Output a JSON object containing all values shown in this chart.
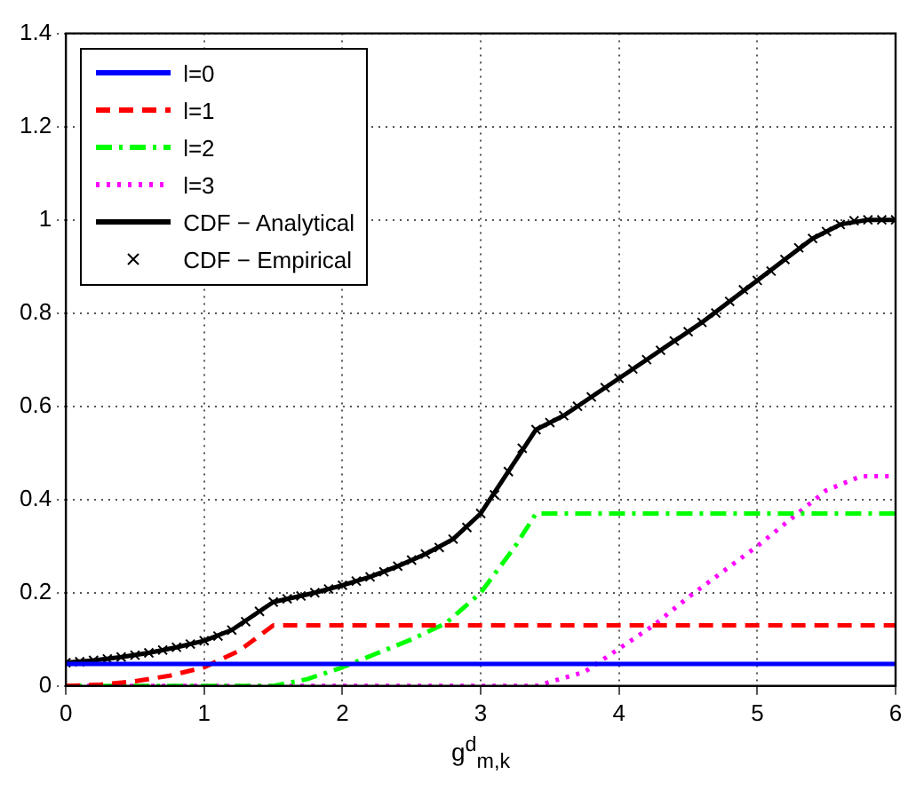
{
  "chart_data": {
    "type": "line",
    "xlabel": "g$^{d}$$_{m,k}$",
    "xlim": [
      0,
      6
    ],
    "xticks": [
      0,
      1,
      2,
      3,
      4,
      5,
      6
    ],
    "ylim": [
      0,
      1.4
    ],
    "yticks": [
      0,
      0.2,
      0.4,
      0.6,
      0.8,
      1,
      1.2,
      1.4
    ],
    "grid": true,
    "legend": "top left",
    "series": [
      {
        "name": "l=0",
        "color": "#0000ff",
        "line_style": "solid",
        "marker": "none",
        "x": [
          0,
          6
        ],
        "values": [
          0.047,
          0.047
        ]
      },
      {
        "name": "l=1",
        "color": "#ff0000",
        "line_style": "dashed",
        "marker": "none",
        "x": [
          0,
          0.25,
          0.5,
          0.75,
          1,
          1.25,
          1.5,
          2,
          3,
          4,
          5,
          6
        ],
        "values": [
          0,
          0.003,
          0.01,
          0.022,
          0.04,
          0.075,
          0.13,
          0.13,
          0.13,
          0.13,
          0.13,
          0.13
        ]
      },
      {
        "name": "l=2",
        "color": "#00ff00",
        "line_style": "dashdot",
        "marker": "none",
        "x": [
          0,
          1.5,
          1.75,
          2,
          2.25,
          2.5,
          2.75,
          3,
          3.25,
          3.4,
          4,
          5,
          6
        ],
        "values": [
          0,
          0,
          0.015,
          0.04,
          0.07,
          0.1,
          0.135,
          0.2,
          0.3,
          0.37,
          0.37,
          0.37,
          0.37
        ]
      },
      {
        "name": "l=3",
        "color": "#ff00ff",
        "line_style": "dotted",
        "marker": "none",
        "x": [
          0,
          3.4,
          3.75,
          4,
          4.25,
          4.5,
          4.75,
          5,
          5.25,
          5.5,
          5.75,
          6
        ],
        "values": [
          0,
          0,
          0.03,
          0.08,
          0.13,
          0.19,
          0.245,
          0.3,
          0.36,
          0.42,
          0.45,
          0.45
        ]
      },
      {
        "name": "CDF − Analytical",
        "color": "#000000",
        "line_style": "solid",
        "marker": "none",
        "x": [
          0,
          0.2,
          0.4,
          0.6,
          0.8,
          1,
          1.2,
          1.4,
          1.5,
          1.8,
          2,
          2.2,
          2.4,
          2.6,
          2.8,
          3,
          3.2,
          3.4,
          3.6,
          3.8,
          4,
          4.2,
          4.4,
          4.6,
          4.8,
          5,
          5.2,
          5.4,
          5.6,
          5.8,
          6
        ],
        "values": [
          0.05,
          0.055,
          0.062,
          0.071,
          0.083,
          0.097,
          0.12,
          0.16,
          0.18,
          0.2,
          0.216,
          0.234,
          0.257,
          0.283,
          0.315,
          0.37,
          0.46,
          0.55,
          0.58,
          0.62,
          0.66,
          0.7,
          0.74,
          0.78,
          0.825,
          0.87,
          0.915,
          0.96,
          0.99,
          1,
          1
        ]
      },
      {
        "name": "CDF − Empirical",
        "type": "scatter",
        "color": "#000000",
        "marker": "cross",
        "x": [
          0,
          0.1,
          0.2,
          0.3,
          0.4,
          0.5,
          0.6,
          0.7,
          0.8,
          0.9,
          1,
          1.1,
          1.2,
          1.3,
          1.4,
          1.5,
          1.6,
          1.7,
          1.8,
          1.9,
          2,
          2.1,
          2.2,
          2.3,
          2.4,
          2.5,
          2.6,
          2.7,
          2.8,
          2.9,
          3,
          3.1,
          3.2,
          3.3,
          3.4,
          3.5,
          3.6,
          3.7,
          3.8,
          3.9,
          4,
          4.1,
          4.2,
          4.3,
          4.4,
          4.5,
          4.6,
          4.7,
          4.8,
          4.9,
          5,
          5.1,
          5.2,
          5.3,
          5.4,
          5.5,
          5.6,
          5.7,
          5.8,
          5.9,
          6
        ],
        "values": [
          0.05,
          0.052,
          0.055,
          0.058,
          0.062,
          0.066,
          0.071,
          0.077,
          0.083,
          0.09,
          0.097,
          0.107,
          0.12,
          0.138,
          0.16,
          0.18,
          0.187,
          0.193,
          0.2,
          0.208,
          0.216,
          0.225,
          0.234,
          0.245,
          0.257,
          0.27,
          0.283,
          0.297,
          0.315,
          0.34,
          0.37,
          0.41,
          0.46,
          0.51,
          0.55,
          0.565,
          0.58,
          0.6,
          0.62,
          0.64,
          0.66,
          0.68,
          0.7,
          0.72,
          0.74,
          0.76,
          0.78,
          0.8,
          0.825,
          0.85,
          0.87,
          0.89,
          0.915,
          0.94,
          0.96,
          0.975,
          0.99,
          0.998,
          1,
          1,
          1
        ]
      }
    ]
  }
}
